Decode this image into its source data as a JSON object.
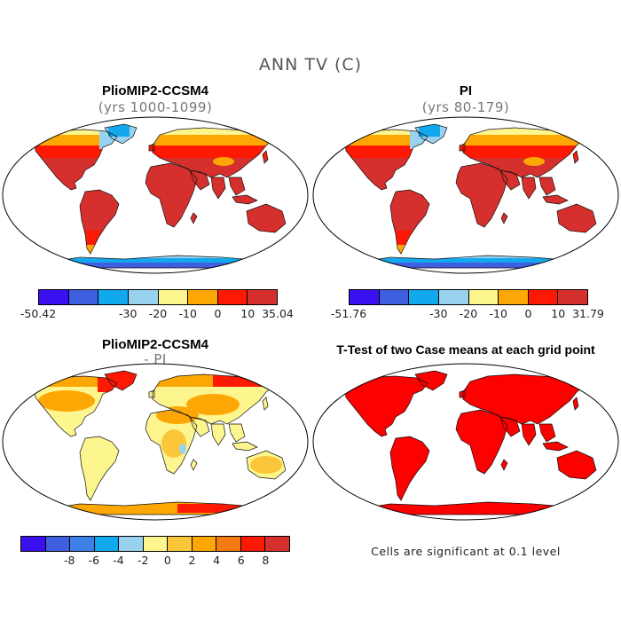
{
  "figure": {
    "title": "ANN TV (C)"
  },
  "panels": [
    {
      "id": "pliomip2",
      "title": "PlioMIP2-CCSM4",
      "subtitle": "(yrs 1000-1099)",
      "colorbar": {
        "colors": [
          "#3a10f0",
          "#3f5fe0",
          "#12a8ee",
          "#98d2ee",
          "#fdf58e",
          "#fda704",
          "#fd1904",
          "#d6302e"
        ],
        "tick_labels": [
          "-50.42",
          "-30",
          "-20",
          "-10",
          "0",
          "10",
          "35.04"
        ]
      }
    },
    {
      "id": "pi",
      "title": "PI",
      "subtitle": "(yrs 80-179)",
      "colorbar": {
        "colors": [
          "#3a10f0",
          "#3f5fe0",
          "#12a8ee",
          "#98d2ee",
          "#fdf58e",
          "#fda704",
          "#fd1904",
          "#d6302e"
        ],
        "tick_labels": [
          "-51.76",
          "-30",
          "-20",
          "-10",
          "0",
          "10",
          "31.79"
        ]
      }
    },
    {
      "id": "diff",
      "title": "PlioMIP2-CCSM4",
      "subtitle": "- PI",
      "colorbar": {
        "colors": [
          "#3a10f0",
          "#3f5fe0",
          "#3f7fe8",
          "#12a8ee",
          "#98d2ee",
          "#fdf58e",
          "#fcc63a",
          "#fda704",
          "#f57a12",
          "#fd1904",
          "#d6302e"
        ],
        "tick_labels": [
          "-8",
          "-6",
          "-4",
          "-2",
          "0",
          "2",
          "4",
          "6",
          "8"
        ]
      }
    },
    {
      "id": "ttest",
      "title": "T-Test of two Case means at each grid point",
      "note": "Cells are significant at 0.1 level"
    }
  ],
  "map_colors": {
    "tropic_red": "#d6302e",
    "red": "#fd1904",
    "orange": "#fda704",
    "yellow": "#fdf58e",
    "light_blue": "#98d2ee",
    "cyan": "#12a8ee",
    "blue": "#3f5fe0",
    "violet": "#3a10f0",
    "white": "#ffffff",
    "significance": "#fd0000"
  }
}
